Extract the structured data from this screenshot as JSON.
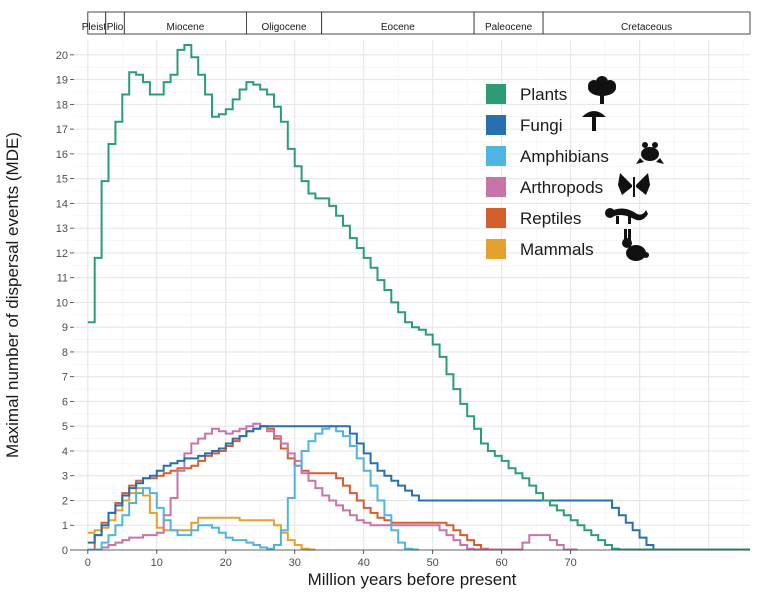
{
  "chart_data": {
    "type": "line",
    "step": true,
    "title": "",
    "xlabel": "Million years before present",
    "ylabel": "Maximal number of dispersal events (MDE)",
    "xlim": [
      -2,
      96
    ],
    "ylim": [
      0,
      20.6
    ],
    "xticks": [
      0,
      10,
      20,
      30,
      40,
      50,
      60,
      70
    ],
    "yticks": [
      0,
      1,
      2,
      3,
      4,
      5,
      6,
      7,
      8,
      9,
      10,
      11,
      12,
      13,
      14,
      15,
      16,
      17,
      18,
      19,
      20
    ],
    "grid": true,
    "legend_position": "top-right",
    "epochs": [
      {
        "name": "Pleisto",
        "start": 0,
        "end": 2.6
      },
      {
        "name": "Plio",
        "start": 2.6,
        "end": 5.3
      },
      {
        "name": "Miocene",
        "start": 5.3,
        "end": 23.0
      },
      {
        "name": "Oligocene",
        "start": 23.0,
        "end": 33.9
      },
      {
        "name": "Eocene",
        "start": 33.9,
        "end": 56.0
      },
      {
        "name": "Paleocene",
        "start": 56.0,
        "end": 66.0
      },
      {
        "name": "Cretaceous",
        "start": 66.0,
        "end": 96
      }
    ],
    "series": [
      {
        "name": "Plants",
        "color": "#2a9d72",
        "icon": "tree-icon",
        "x": [
          0,
          1,
          2,
          3,
          4,
          5,
          6,
          7,
          8,
          9,
          10,
          11,
          12,
          13,
          14,
          15,
          16,
          17,
          18,
          19,
          20,
          21,
          22,
          23,
          24,
          25,
          26,
          27,
          28,
          29,
          30,
          31,
          32,
          33,
          34,
          35,
          36,
          37,
          38,
          39,
          40,
          41,
          42,
          43,
          44,
          45,
          46,
          47,
          48,
          49,
          50,
          51,
          52,
          53,
          54,
          55,
          56,
          57,
          58,
          59,
          60,
          61,
          62,
          63,
          64,
          65,
          66,
          67,
          68,
          69,
          70,
          71,
          72,
          73,
          74,
          75,
          76,
          77,
          78,
          79,
          80,
          81,
          82,
          83,
          84,
          85,
          86,
          87,
          88,
          89,
          90,
          91,
          92,
          93,
          94,
          95
        ],
        "y": [
          9.2,
          11.8,
          14.9,
          16.4,
          17.3,
          18.4,
          19.3,
          19.2,
          18.9,
          18.4,
          18.4,
          18.9,
          19.2,
          20.2,
          20.4,
          19.9,
          19.2,
          18.4,
          17.5,
          17.6,
          17.8,
          18.2,
          18.6,
          18.9,
          18.8,
          18.6,
          18.4,
          17.9,
          17.3,
          16.2,
          15.5,
          14.9,
          14.4,
          14.2,
          14.2,
          13.9,
          13.5,
          13.1,
          12.6,
          12.2,
          11.8,
          11.4,
          10.9,
          10.5,
          10.0,
          9.6,
          9.2,
          9.0,
          8.9,
          8.7,
          8.3,
          7.8,
          7.1,
          6.5,
          5.9,
          5.4,
          4.9,
          4.3,
          4.0,
          3.8,
          3.6,
          3.3,
          3.1,
          2.9,
          2.6,
          2.3,
          2.0,
          1.8,
          1.6,
          1.4,
          1.2,
          1.0,
          0.8,
          0.6,
          0.4,
          0.2,
          0.05,
          0.02,
          0.02,
          0.02,
          0.02,
          0.02,
          0.02,
          0.02,
          0.02,
          0.02,
          0.02,
          0.02,
          0.02,
          0.02,
          0.02,
          0.02,
          0.02,
          0.02,
          0.02,
          0.02
        ]
      },
      {
        "name": "Fungi",
        "color": "#2a6fad",
        "icon": "mushroom-icon",
        "x": [
          0,
          1,
          2,
          3,
          4,
          5,
          6,
          7,
          8,
          9,
          10,
          11,
          12,
          13,
          14,
          15,
          16,
          17,
          18,
          19,
          20,
          21,
          22,
          23,
          24,
          25,
          26,
          27,
          28,
          29,
          30,
          31,
          32,
          33,
          34,
          35,
          36,
          37,
          38,
          39,
          40,
          41,
          42,
          43,
          44,
          45,
          46,
          47,
          48,
          49,
          50,
          51,
          52,
          53,
          54,
          55,
          56,
          57,
          58,
          59,
          60,
          61,
          62,
          63,
          64,
          65,
          66,
          67,
          68,
          69,
          70,
          71,
          72,
          73,
          74,
          75,
          76,
          77,
          78,
          79,
          80,
          81,
          82,
          83,
          84,
          85
        ],
        "y": [
          0.3,
          0.6,
          1.0,
          1.5,
          1.8,
          2.2,
          2.5,
          2.7,
          2.9,
          3.0,
          3.2,
          3.4,
          3.5,
          3.6,
          3.7,
          3.7,
          3.8,
          3.9,
          4.0,
          4.1,
          4.3,
          4.5,
          4.6,
          4.8,
          4.9,
          5.0,
          5.0,
          5.0,
          5.0,
          5.0,
          5.0,
          5.0,
          5.0,
          5.0,
          5.0,
          5.0,
          5.0,
          5.0,
          4.7,
          4.3,
          3.9,
          3.5,
          3.2,
          3.0,
          2.8,
          2.6,
          2.4,
          2.2,
          2.0,
          2.0,
          2.0,
          2.0,
          2.0,
          2.0,
          2.0,
          2.0,
          2.0,
          2.0,
          2.0,
          2.0,
          2.0,
          2.0,
          2.0,
          2.0,
          2.0,
          2.0,
          2.0,
          2.0,
          2.0,
          2.0,
          2.0,
          2.0,
          2.0,
          2.0,
          2.0,
          2.0,
          1.7,
          1.4,
          1.1,
          0.8,
          0.5,
          0.2,
          0.02,
          0.02,
          0.02,
          0.02
        ]
      },
      {
        "name": "Amphibians",
        "color": "#4eb4e0",
        "icon": "frog-icon",
        "x": [
          0,
          1,
          2,
          3,
          4,
          5,
          6,
          7,
          8,
          9,
          10,
          11,
          12,
          13,
          14,
          15,
          16,
          17,
          18,
          19,
          20,
          21,
          22,
          23,
          24,
          25,
          26,
          27,
          28,
          29,
          30,
          31,
          32,
          33,
          34,
          35,
          36,
          37,
          38,
          39,
          40,
          41,
          42,
          43,
          44,
          45,
          46,
          47
        ],
        "y": [
          0.02,
          0.02,
          0.3,
          0.6,
          1.0,
          1.4,
          1.9,
          2.3,
          2.5,
          2.3,
          1.7,
          1.2,
          0.8,
          0.6,
          0.6,
          0.8,
          1.0,
          1.0,
          0.9,
          0.7,
          0.5,
          0.4,
          0.4,
          0.3,
          0.2,
          0.1,
          0.05,
          0.2,
          0.8,
          2.1,
          3.4,
          4.0,
          4.4,
          4.7,
          4.9,
          5.0,
          4.8,
          4.6,
          4.2,
          3.7,
          3.2,
          2.6,
          2.0,
          1.4,
          0.8,
          0.3,
          0.05,
          0.02
        ]
      },
      {
        "name": "Arthropods",
        "color": "#c774a8",
        "icon": "butterfly-icon",
        "x": [
          0,
          1,
          2,
          3,
          4,
          5,
          6,
          7,
          8,
          9,
          10,
          11,
          12,
          13,
          14,
          15,
          16,
          17,
          18,
          19,
          20,
          21,
          22,
          23,
          24,
          25,
          26,
          27,
          28,
          29,
          30,
          31,
          32,
          33,
          34,
          35,
          36,
          37,
          38,
          39,
          40,
          41,
          42,
          43,
          44,
          45,
          46,
          47,
          48,
          49,
          50,
          51,
          52,
          53,
          54,
          55,
          56,
          57,
          58,
          59,
          60,
          61,
          62,
          63,
          64,
          65,
          66,
          67,
          68,
          69,
          70
        ],
        "y": [
          0.02,
          0.02,
          0.1,
          0.2,
          0.3,
          0.4,
          0.5,
          0.5,
          0.6,
          0.6,
          0.7,
          1.4,
          2.1,
          3.2,
          3.9,
          4.3,
          4.5,
          4.7,
          4.9,
          4.8,
          4.7,
          4.8,
          4.9,
          5.0,
          5.1,
          5.0,
          4.8,
          4.6,
          4.3,
          3.9,
          3.6,
          3.1,
          2.8,
          2.5,
          2.2,
          2.0,
          1.8,
          1.6,
          1.4,
          1.2,
          1.1,
          1.0,
          1.0,
          1.0,
          1.0,
          1.0,
          1.0,
          1.0,
          1.0,
          1.0,
          1.0,
          0.8,
          0.6,
          0.4,
          0.2,
          0.05,
          0.02,
          0.02,
          0.02,
          0.02,
          0.02,
          0.02,
          0.02,
          0.3,
          0.6,
          0.6,
          0.6,
          0.4,
          0.2,
          0.02,
          0.02
        ]
      },
      {
        "name": "Reptiles",
        "color": "#d35f2d",
        "icon": "lizard-icon",
        "x": [
          0,
          1,
          2,
          3,
          4,
          5,
          6,
          7,
          8,
          9,
          10,
          11,
          12,
          13,
          14,
          15,
          16,
          17,
          18,
          19,
          20,
          21,
          22,
          23,
          24,
          25,
          26,
          27,
          28,
          29,
          30,
          31,
          32,
          33,
          34,
          35,
          36,
          37,
          38,
          39,
          40,
          41,
          42,
          43,
          44,
          45,
          46,
          47,
          48,
          49,
          50,
          51,
          52,
          53,
          54,
          55,
          56,
          57,
          58
        ],
        "y": [
          0.02,
          0.6,
          1.1,
          1.5,
          1.9,
          2.3,
          2.6,
          2.8,
          2.9,
          2.9,
          3.0,
          3.1,
          3.2,
          3.3,
          3.3,
          3.4,
          3.6,
          3.8,
          3.9,
          4.0,
          4.2,
          4.4,
          4.6,
          4.8,
          4.9,
          5.0,
          4.9,
          4.5,
          4.1,
          3.7,
          3.4,
          3.2,
          3.1,
          3.1,
          3.1,
          3.1,
          2.9,
          2.6,
          2.3,
          2.0,
          1.7,
          1.5,
          1.3,
          1.2,
          1.1,
          1.1,
          1.1,
          1.1,
          1.1,
          1.1,
          1.1,
          1.1,
          1.0,
          0.8,
          0.6,
          0.4,
          0.2,
          0.05,
          0.02
        ]
      },
      {
        "name": "Mammals",
        "color": "#e3a12f",
        "icon": "rabbit-icon",
        "x": [
          0,
          1,
          2,
          3,
          4,
          5,
          6,
          7,
          8,
          9,
          10,
          11,
          12,
          13,
          14,
          15,
          16,
          17,
          18,
          19,
          20,
          21,
          22,
          23,
          24,
          25,
          26,
          27,
          28,
          29,
          30,
          31,
          32
        ],
        "y": [
          0.7,
          0.8,
          0.9,
          1.2,
          1.6,
          2.0,
          2.3,
          2.5,
          2.2,
          1.5,
          0.9,
          0.8,
          0.8,
          0.8,
          0.8,
          1.1,
          1.3,
          1.3,
          1.3,
          1.3,
          1.3,
          1.3,
          1.2,
          1.2,
          1.2,
          1.2,
          1.2,
          1.0,
          0.7,
          0.4,
          0.2,
          0.05,
          0.02
        ]
      }
    ]
  }
}
